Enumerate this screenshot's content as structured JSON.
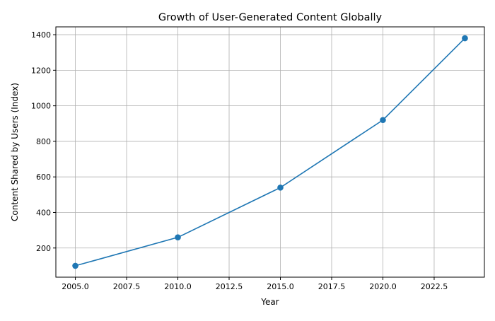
{
  "chart_data": {
    "type": "line",
    "title": "Growth of User-Generated Content Globally",
    "xlabel": "Year",
    "ylabel": "Content Shared by Users (Index)",
    "x": [
      2005,
      2010,
      2015,
      2020,
      2024
    ],
    "series": [
      {
        "values": [
          100,
          260,
          540,
          920,
          1380
        ],
        "color": "#1f77b4",
        "marker": "circle"
      }
    ],
    "xlim": [
      2004.05,
      2024.95
    ],
    "ylim": [
      36,
      1444
    ],
    "xticks": [
      "2005.0",
      "2007.5",
      "2010.0",
      "2012.5",
      "2015.0",
      "2017.5",
      "2020.0",
      "2022.5"
    ],
    "xtick_values": [
      2005,
      2007.5,
      2010,
      2012.5,
      2015,
      2017.5,
      2020,
      2022.5
    ],
    "yticks": [
      "200",
      "400",
      "600",
      "800",
      "1000",
      "1200",
      "1400"
    ],
    "ytick_values": [
      200,
      400,
      600,
      800,
      1000,
      1200,
      1400
    ],
    "grid": true,
    "grid_color": "#b0b0b0"
  }
}
